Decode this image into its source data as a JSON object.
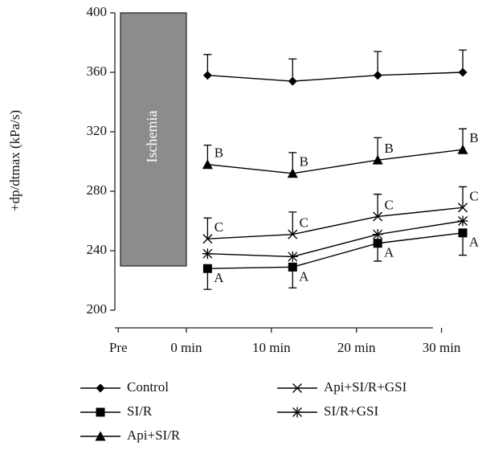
{
  "chart_data": {
    "type": "line",
    "y_label": "+dp/dtmax (kPa/s)",
    "ischemia_label": "Ischemia",
    "x": [
      2.5,
      12.5,
      22.5,
      32.5
    ],
    "xlim": [
      -8.4,
      29
    ],
    "xticks": [
      {
        "value": -8,
        "label": "Pre"
      },
      {
        "value": 0,
        "label": "0 min"
      },
      {
        "value": 10,
        "label": "10 min"
      },
      {
        "value": 20,
        "label": "20 min"
      },
      {
        "value": 30,
        "label": "30 min"
      }
    ],
    "ylim": [
      200,
      400
    ],
    "yticks": [
      200,
      240,
      280,
      320,
      360,
      400
    ],
    "series": [
      {
        "name": "Control",
        "color": "#000000",
        "marker": "diamond",
        "values": [
          358,
          354,
          358,
          360
        ],
        "error": [
          14,
          15,
          16,
          15
        ],
        "error_direction": "up"
      },
      {
        "name": "SI/R",
        "color": "#000000",
        "marker": "square",
        "values": [
          228,
          229,
          245,
          252
        ],
        "error": [
          14,
          14,
          12,
          15
        ],
        "error_direction": "down",
        "labels": [
          "A",
          "A",
          "A",
          "A"
        ]
      },
      {
        "name": "Api+SI/R",
        "color": "#000000",
        "marker": "triangle",
        "values": [
          298,
          292,
          301,
          308
        ],
        "error": [
          13,
          14,
          15,
          14
        ],
        "error_direction": "up",
        "labels": [
          "B",
          "B",
          "B",
          "B"
        ]
      },
      {
        "name": "Api+SI/R+GSI",
        "color": "#000000",
        "marker": "x",
        "values": [
          248,
          251,
          263,
          269
        ],
        "error": [
          14,
          15,
          15,
          14
        ],
        "error_direction": "up",
        "labels": [
          "C",
          "C",
          "C",
          "C"
        ]
      },
      {
        "name": "SI/R+GSI",
        "color": "#000000",
        "marker": "asterisk",
        "values": [
          238,
          236,
          251,
          260
        ]
      }
    ]
  }
}
